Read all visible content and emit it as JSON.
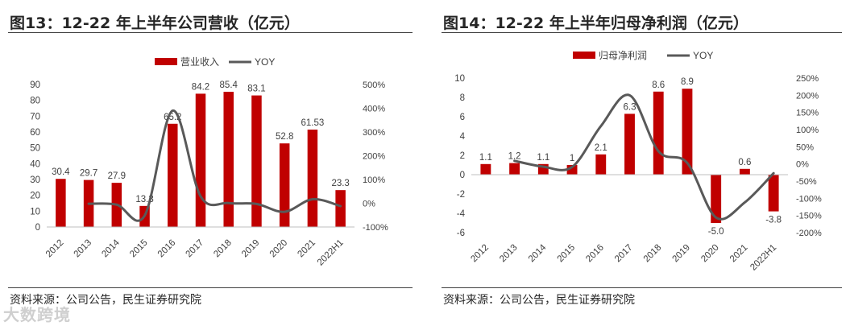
{
  "charts_panel": [
    {
      "title": "图13：12-22 年上半年公司营收（亿元）",
      "source": "资料来源：公司公告，民生证券研究院"
    },
    {
      "title": "图14：12-22 年上半年归母净利润（亿元）",
      "source": "资料来源：公司公告，民生证券研究院"
    }
  ],
  "watermark": "大数跨境",
  "colors": {
    "bar": "#c00000",
    "line": "#595959",
    "axis": "#595959"
  },
  "chart_data": [
    {
      "type": "bar",
      "title": "图13：12-22 年上半年公司营收（亿元）",
      "categories": [
        "2012",
        "2013",
        "2014",
        "2015",
        "2016",
        "2017",
        "2018",
        "2019",
        "2020",
        "2021",
        "2022H1"
      ],
      "series": [
        {
          "name": "营业收入",
          "type": "bar",
          "axis": "left",
          "values": [
            30.4,
            29.7,
            27.9,
            13.3,
            65.2,
            84.2,
            85.4,
            83.1,
            52.8,
            61.53,
            23.3
          ],
          "labels": [
            "30.4",
            "29.7",
            "27.9",
            "13.3",
            "65.2",
            "84.2",
            "85.4",
            "83.1",
            "52.8",
            "61.53",
            "23.3"
          ]
        },
        {
          "name": "YOY",
          "type": "line",
          "axis": "right",
          "values": [
            null,
            -2,
            -6,
            -52,
            390,
            29,
            1,
            -3,
            -36,
            17,
            -12
          ]
        }
      ],
      "y_left": {
        "min": 0,
        "max": 90,
        "step": 10,
        "ticks": [
          "0",
          "10",
          "20",
          "30",
          "40",
          "50",
          "60",
          "70",
          "80",
          "90"
        ]
      },
      "y_right": {
        "min": -100,
        "max": 500,
        "step": 100,
        "ticks": [
          "-100%",
          "0%",
          "100%",
          "200%",
          "300%",
          "400%",
          "500%"
        ]
      },
      "legend": [
        "营业收入",
        "YOY"
      ],
      "legend_position": "top"
    },
    {
      "type": "bar",
      "title": "图14：12-22 年上半年归母净利润（亿元）",
      "categories": [
        "2012",
        "2013",
        "2014",
        "2015",
        "2016",
        "2017",
        "2018",
        "2019",
        "2020",
        "2021",
        "2022H1"
      ],
      "series": [
        {
          "name": "归母净利润",
          "type": "bar",
          "axis": "left",
          "values": [
            1.1,
            1.2,
            1.1,
            1.0,
            2.1,
            6.3,
            8.6,
            8.9,
            -5.0,
            0.6,
            -3.8
          ],
          "labels": [
            "1.1",
            "1.2",
            "1.1",
            "1",
            "2.1",
            "6.3",
            "8.6",
            "8.9",
            "-5.0",
            "0.6",
            "-3.8"
          ]
        },
        {
          "name": "YOY",
          "type": "line",
          "axis": "right",
          "values": [
            null,
            9,
            -8,
            -9,
            110,
            200,
            37,
            3,
            -156,
            -112,
            -27
          ]
        }
      ],
      "y_left": {
        "min": -6,
        "max": 10,
        "step": 2,
        "ticks": [
          "-6",
          "-4",
          "-2",
          "0",
          "2",
          "4",
          "6",
          "8",
          "10"
        ]
      },
      "y_right": {
        "min": -200,
        "max": 250,
        "step": 50,
        "ticks": [
          "-200%",
          "-150%",
          "-100%",
          "-50%",
          "0%",
          "50%",
          "100%",
          "150%",
          "200%",
          "250%"
        ]
      },
      "legend": [
        "归母净利润",
        "YOY"
      ],
      "legend_position": "top"
    }
  ]
}
